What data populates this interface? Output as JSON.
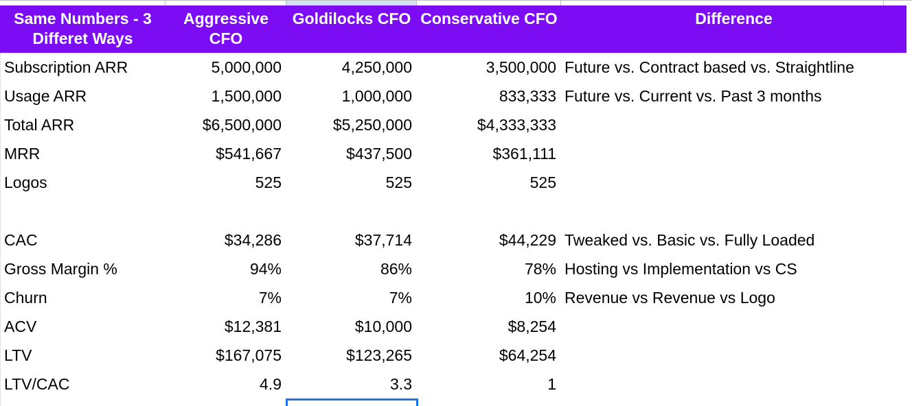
{
  "sheet": {
    "header": {
      "row_label_col": "Same Numbers - 3 Differet Ways",
      "columns": [
        "Aggressive CFO",
        "Goldilocks CFO",
        "Conservative CFO",
        "Difference"
      ]
    },
    "rows": [
      {
        "label": "Subscription ARR",
        "aggressive": "5,000,000",
        "goldilocks": "4,250,000",
        "conservative": "3,500,000",
        "difference": "Future vs. Contract based vs. Straightline"
      },
      {
        "label": "Usage ARR",
        "aggressive": "1,500,000",
        "goldilocks": "1,000,000",
        "conservative": "833,333",
        "difference": "Future vs. Current vs. Past 3 months"
      },
      {
        "label": "Total ARR",
        "aggressive": "$6,500,000",
        "goldilocks": "$5,250,000",
        "conservative": "$4,333,333",
        "difference": ""
      },
      {
        "label": "MRR",
        "aggressive": "$541,667",
        "goldilocks": "$437,500",
        "conservative": "$361,111",
        "difference": ""
      },
      {
        "label": "Logos",
        "aggressive": "525",
        "goldilocks": "525",
        "conservative": "525",
        "difference": ""
      },
      {
        "label": "",
        "aggressive": "",
        "goldilocks": "",
        "conservative": "",
        "difference": ""
      },
      {
        "label": "CAC",
        "aggressive": "$34,286",
        "goldilocks": "$37,714",
        "conservative": "$44,229",
        "difference": "Tweaked vs. Basic vs. Fully Loaded"
      },
      {
        "label": "Gross Margin %",
        "aggressive": "94%",
        "goldilocks": "86%",
        "conservative": "78%",
        "difference": "Hosting vs Implementation vs CS"
      },
      {
        "label": "Churn",
        "aggressive": "7%",
        "goldilocks": "7%",
        "conservative": "10%",
        "difference": "Revenue vs Revenue vs Logo"
      },
      {
        "label": "ACV",
        "aggressive": "$12,381",
        "goldilocks": "$10,000",
        "conservative": "$8,254",
        "difference": ""
      },
      {
        "label": "LTV",
        "aggressive": "$167,075",
        "goldilocks": "$123,265",
        "conservative": "$64,254",
        "difference": ""
      },
      {
        "label": "LTV/CAC",
        "aggressive": "4.9",
        "goldilocks": "3.3",
        "conservative": "1",
        "difference": ""
      }
    ],
    "colors": {
      "header_bg": "#7b0cf4",
      "header_text": "#ffffff",
      "selection_border": "#1a73e8",
      "highlighted_strip_cell_bg": "#d0e0f7",
      "gridline": "#bdbdbd",
      "body_text": "#000000"
    }
  }
}
